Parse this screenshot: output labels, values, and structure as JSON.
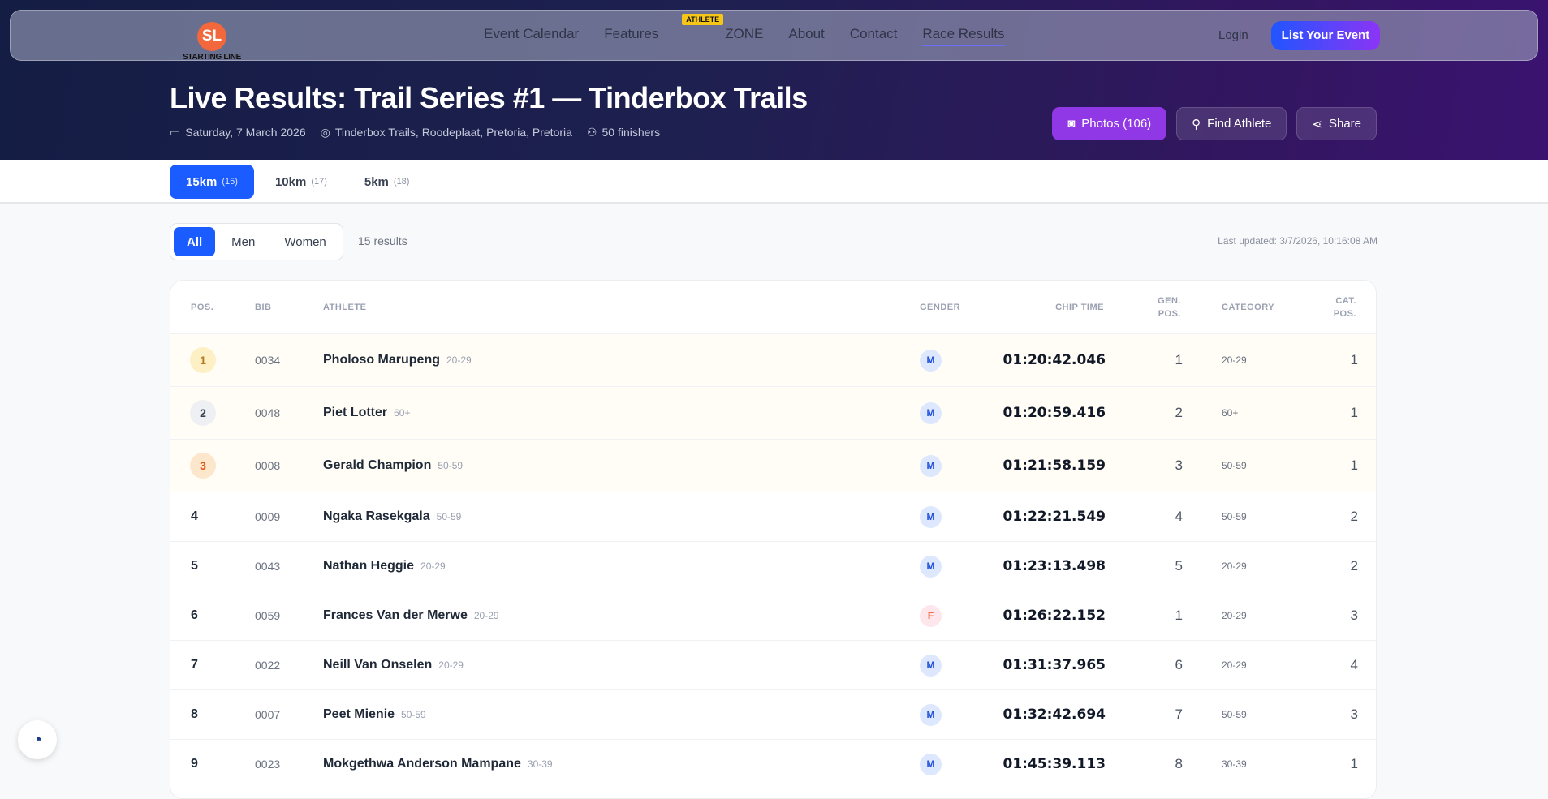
{
  "brand": {
    "logo_initials": "SL",
    "logo_text": "STARTING LINE"
  },
  "nav": {
    "links": [
      "Event Calendar",
      "Features",
      "ZONE",
      "About",
      "Contact",
      "Race Results"
    ],
    "zone_badge": "ATHLETE",
    "active": "Race Results",
    "login": "Login",
    "cta": "List Your Event"
  },
  "event": {
    "title": "Live Results: Trail Series #1 — Tinderbox Trails",
    "date": "Saturday, 7 March 2026",
    "location": "Tinderbox Trails, Roodeplaat, Pretoria, Pretoria",
    "finishers": "50 finishers"
  },
  "actions": {
    "photos": "Photos (106)",
    "find": "Find Athlete",
    "share": "Share"
  },
  "distance_tabs": [
    {
      "label": "15km",
      "count": "(15)",
      "active": true
    },
    {
      "label": "10km",
      "count": "(17)"
    },
    {
      "label": "5km",
      "count": "(18)"
    }
  ],
  "filters": {
    "options": [
      "All",
      "Men",
      "Women"
    ],
    "active": "All",
    "result_count": "15 results",
    "last_updated": "Last updated: 3/7/2026, 10:16:08 AM"
  },
  "table": {
    "headers": {
      "pos": "POS.",
      "bib": "BIB",
      "athlete": "ATHLETE",
      "gender": "GENDER",
      "chip": "CHIP TIME",
      "gen_pos_1": "GEN.",
      "gen_pos_2": "POS.",
      "category": "CATEGORY",
      "cat_pos_1": "CAT.",
      "cat_pos_2": "POS."
    },
    "rows": [
      {
        "pos": "1",
        "bib": "0034",
        "name": "Pholoso Marupeng",
        "cat": "20-29",
        "gender": "M",
        "chip": "01:20:42.046",
        "gen_pos": "1",
        "cat_pos": "1"
      },
      {
        "pos": "2",
        "bib": "0048",
        "name": "Piet Lotter",
        "cat": "60+",
        "gender": "M",
        "chip": "01:20:59.416",
        "gen_pos": "2",
        "cat_pos": "1"
      },
      {
        "pos": "3",
        "bib": "0008",
        "name": "Gerald Champion",
        "cat": "50-59",
        "gender": "M",
        "chip": "01:21:58.159",
        "gen_pos": "3",
        "cat_pos": "1"
      },
      {
        "pos": "4",
        "bib": "0009",
        "name": "Ngaka Rasekgala",
        "cat": "50-59",
        "gender": "M",
        "chip": "01:22:21.549",
        "gen_pos": "4",
        "cat_pos": "2"
      },
      {
        "pos": "5",
        "bib": "0043",
        "name": "Nathan Heggie",
        "cat": "20-29",
        "gender": "M",
        "chip": "01:23:13.498",
        "gen_pos": "5",
        "cat_pos": "2"
      },
      {
        "pos": "6",
        "bib": "0059",
        "name": "Frances Van der Merwe",
        "cat": "20-29",
        "gender": "F",
        "chip": "01:26:22.152",
        "gen_pos": "1",
        "cat_pos": "3"
      },
      {
        "pos": "7",
        "bib": "0022",
        "name": "Neill Van Onselen",
        "cat": "20-29",
        "gender": "M",
        "chip": "01:31:37.965",
        "gen_pos": "6",
        "cat_pos": "4"
      },
      {
        "pos": "8",
        "bib": "0007",
        "name": "Peet Mienie",
        "cat": "50-59",
        "gender": "M",
        "chip": "01:32:42.694",
        "gen_pos": "7",
        "cat_pos": "3"
      },
      {
        "pos": "9",
        "bib": "0023",
        "name": "Mokgethwa Anderson Mampane",
        "cat": "30-39",
        "gender": "M",
        "chip": "01:45:39.113",
        "gen_pos": "8",
        "cat_pos": "1"
      }
    ]
  },
  "colors": {
    "accent": "#1a5cff",
    "photos": "#9038e6",
    "gold": "#fdf0c4",
    "silver": "#eef0f4",
    "bronze": "#fde7cc"
  }
}
